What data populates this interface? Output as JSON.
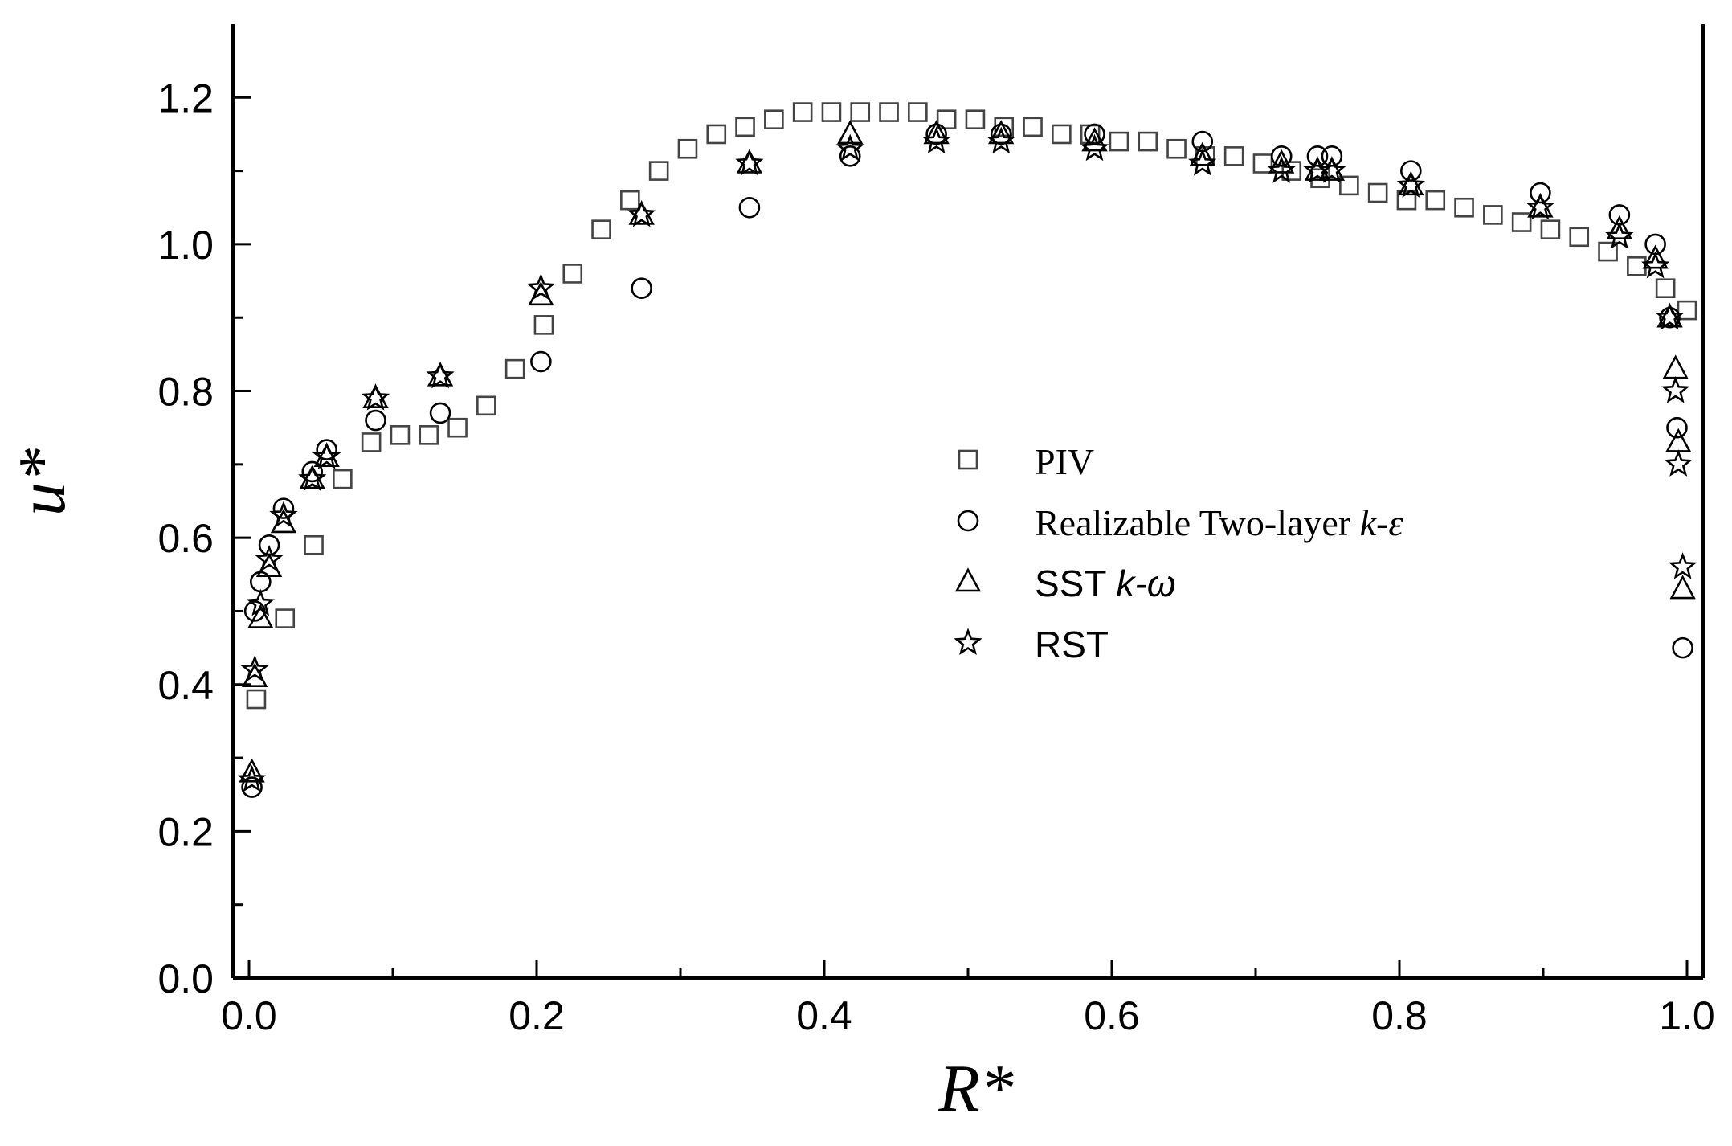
{
  "chart_data": {
    "type": "scatter",
    "title": "",
    "xlabel": "R*",
    "ylabel": "u*",
    "xlim": [
      0.0,
      1.0
    ],
    "ylim": [
      0.0,
      1.3
    ],
    "x_ticks": [
      "0.0",
      "0.2",
      "0.4",
      "0.6",
      "0.8",
      "1.0"
    ],
    "y_ticks": [
      "0.0",
      "0.2",
      "0.4",
      "0.6",
      "0.8",
      "1.0",
      "1.2"
    ],
    "legend_position": "center-right",
    "series": [
      {
        "name": "PIV",
        "marker": "square",
        "points": [
          [
            0.005,
            0.38
          ],
          [
            0.025,
            0.49
          ],
          [
            0.045,
            0.59
          ],
          [
            0.065,
            0.68
          ],
          [
            0.085,
            0.73
          ],
          [
            0.105,
            0.74
          ],
          [
            0.125,
            0.74
          ],
          [
            0.145,
            0.75
          ],
          [
            0.165,
            0.78
          ],
          [
            0.185,
            0.83
          ],
          [
            0.205,
            0.89
          ],
          [
            0.225,
            0.96
          ],
          [
            0.245,
            1.02
          ],
          [
            0.265,
            1.06
          ],
          [
            0.285,
            1.1
          ],
          [
            0.305,
            1.13
          ],
          [
            0.325,
            1.15
          ],
          [
            0.345,
            1.16
          ],
          [
            0.365,
            1.17
          ],
          [
            0.385,
            1.18
          ],
          [
            0.405,
            1.18
          ],
          [
            0.425,
            1.18
          ],
          [
            0.445,
            1.18
          ],
          [
            0.465,
            1.18
          ],
          [
            0.485,
            1.17
          ],
          [
            0.505,
            1.17
          ],
          [
            0.525,
            1.16
          ],
          [
            0.545,
            1.16
          ],
          [
            0.565,
            1.15
          ],
          [
            0.585,
            1.15
          ],
          [
            0.605,
            1.14
          ],
          [
            0.625,
            1.14
          ],
          [
            0.645,
            1.13
          ],
          [
            0.665,
            1.12
          ],
          [
            0.685,
            1.12
          ],
          [
            0.705,
            1.11
          ],
          [
            0.725,
            1.1
          ],
          [
            0.745,
            1.09
          ],
          [
            0.765,
            1.08
          ],
          [
            0.785,
            1.07
          ],
          [
            0.805,
            1.06
          ],
          [
            0.825,
            1.06
          ],
          [
            0.845,
            1.05
          ],
          [
            0.865,
            1.04
          ],
          [
            0.885,
            1.03
          ],
          [
            0.905,
            1.02
          ],
          [
            0.925,
            1.01
          ],
          [
            0.945,
            0.99
          ],
          [
            0.965,
            0.97
          ],
          [
            0.985,
            0.94
          ],
          [
            1.0,
            0.91
          ]
        ]
      },
      {
        "name": "Realizable Two-layer k-ε",
        "marker": "circle",
        "points": [
          [
            0.002,
            0.26
          ],
          [
            0.004,
            0.5
          ],
          [
            0.008,
            0.54
          ],
          [
            0.014,
            0.59
          ],
          [
            0.024,
            0.64
          ],
          [
            0.044,
            0.69
          ],
          [
            0.054,
            0.72
          ],
          [
            0.088,
            0.76
          ],
          [
            0.133,
            0.77
          ],
          [
            0.203,
            0.84
          ],
          [
            0.273,
            0.94
          ],
          [
            0.348,
            1.05
          ],
          [
            0.418,
            1.12
          ],
          [
            0.478,
            1.15
          ],
          [
            0.523,
            1.15
          ],
          [
            0.588,
            1.15
          ],
          [
            0.663,
            1.14
          ],
          [
            0.718,
            1.12
          ],
          [
            0.743,
            1.12
          ],
          [
            0.753,
            1.12
          ],
          [
            0.808,
            1.1
          ],
          [
            0.898,
            1.07
          ],
          [
            0.953,
            1.04
          ],
          [
            0.978,
            1.0
          ],
          [
            0.988,
            0.9
          ],
          [
            0.993,
            0.75
          ],
          [
            0.997,
            0.45
          ]
        ]
      },
      {
        "name": "SST k-ω",
        "marker": "triangle",
        "points": [
          [
            0.002,
            0.28
          ],
          [
            0.004,
            0.41
          ],
          [
            0.008,
            0.49
          ],
          [
            0.014,
            0.56
          ],
          [
            0.024,
            0.62
          ],
          [
            0.044,
            0.68
          ],
          [
            0.054,
            0.71
          ],
          [
            0.088,
            0.79
          ],
          [
            0.133,
            0.82
          ],
          [
            0.203,
            0.93
          ],
          [
            0.273,
            1.04
          ],
          [
            0.348,
            1.11
          ],
          [
            0.418,
            1.15
          ],
          [
            0.478,
            1.15
          ],
          [
            0.523,
            1.15
          ],
          [
            0.588,
            1.14
          ],
          [
            0.663,
            1.12
          ],
          [
            0.718,
            1.11
          ],
          [
            0.743,
            1.1
          ],
          [
            0.753,
            1.1
          ],
          [
            0.808,
            1.08
          ],
          [
            0.898,
            1.05
          ],
          [
            0.953,
            1.02
          ],
          [
            0.978,
            0.98
          ],
          [
            0.988,
            0.9
          ],
          [
            0.992,
            0.83
          ],
          [
            0.994,
            0.73
          ],
          [
            0.997,
            0.53
          ]
        ]
      },
      {
        "name": "RST",
        "marker": "star",
        "points": [
          [
            0.002,
            0.27
          ],
          [
            0.004,
            0.42
          ],
          [
            0.008,
            0.51
          ],
          [
            0.014,
            0.57
          ],
          [
            0.024,
            0.63
          ],
          [
            0.044,
            0.68
          ],
          [
            0.054,
            0.71
          ],
          [
            0.088,
            0.79
          ],
          [
            0.133,
            0.82
          ],
          [
            0.203,
            0.94
          ],
          [
            0.273,
            1.04
          ],
          [
            0.348,
            1.11
          ],
          [
            0.418,
            1.13
          ],
          [
            0.478,
            1.14
          ],
          [
            0.523,
            1.14
          ],
          [
            0.588,
            1.13
          ],
          [
            0.663,
            1.11
          ],
          [
            0.718,
            1.1
          ],
          [
            0.743,
            1.1
          ],
          [
            0.753,
            1.1
          ],
          [
            0.808,
            1.08
          ],
          [
            0.898,
            1.05
          ],
          [
            0.953,
            1.01
          ],
          [
            0.978,
            0.97
          ],
          [
            0.988,
            0.9
          ],
          [
            0.992,
            0.8
          ],
          [
            0.994,
            0.7
          ],
          [
            0.997,
            0.56
          ]
        ]
      }
    ]
  },
  "legend": {
    "items": [
      {
        "marker": "square",
        "label_a": "PIV",
        "label_b": ""
      },
      {
        "marker": "circle",
        "label_a": "Realizable Two-layer ",
        "label_b": "k-ε"
      },
      {
        "marker": "triangle",
        "label_a": "SST ",
        "label_b": "k-ω"
      },
      {
        "marker": "star",
        "label_a": "RST",
        "label_b": ""
      }
    ]
  }
}
